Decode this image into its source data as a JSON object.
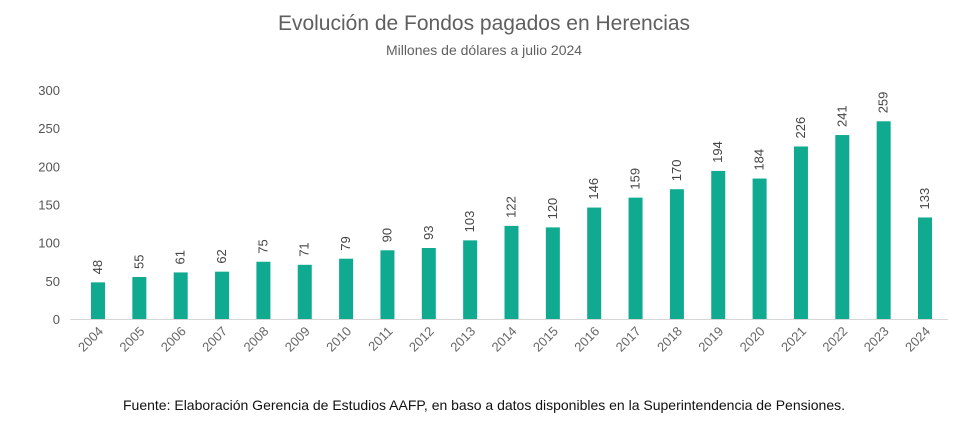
{
  "title": "Evolución de Fondos pagados en Herencias",
  "subtitle": "Millones de dólares a julio 2024",
  "source": "Fuente: Elaboración Gerencia de Estudios AAFP, en baso a datos disponibles en la Superintendencia de Pensiones.",
  "chart_data": {
    "type": "bar",
    "title": "Evolución de Fondos pagados en Herencias",
    "subtitle": "Millones de dólares a julio 2024",
    "categories": [
      "2004",
      "2005",
      "2006",
      "2007",
      "2008",
      "2009",
      "2010",
      "2011",
      "2012",
      "2013",
      "2014",
      "2015",
      "2016",
      "2017",
      "2018",
      "2019",
      "2020",
      "2021",
      "2022",
      "2023",
      "2024"
    ],
    "values": [
      48,
      55,
      61,
      62,
      75,
      71,
      79,
      90,
      93,
      103,
      122,
      120,
      146,
      159,
      170,
      194,
      184,
      226,
      241,
      259,
      133
    ],
    "data_labels": [
      "48",
      "55",
      "61",
      "62",
      "75",
      "71",
      "79",
      "90",
      "93",
      "103",
      "122",
      "120",
      "146",
      "159",
      "170",
      "194",
      "184",
      "226",
      "241",
      "259",
      "133"
    ],
    "y_ticks": [
      "0",
      "50",
      "100",
      "150",
      "200",
      "250",
      "300"
    ],
    "y_tick_values": [
      0,
      50,
      100,
      150,
      200,
      250,
      300
    ],
    "ylim": [
      0,
      300
    ],
    "grid": false,
    "legend": "none",
    "bar_color": "#0faa90",
    "axis_color": "#d6d6d6"
  }
}
